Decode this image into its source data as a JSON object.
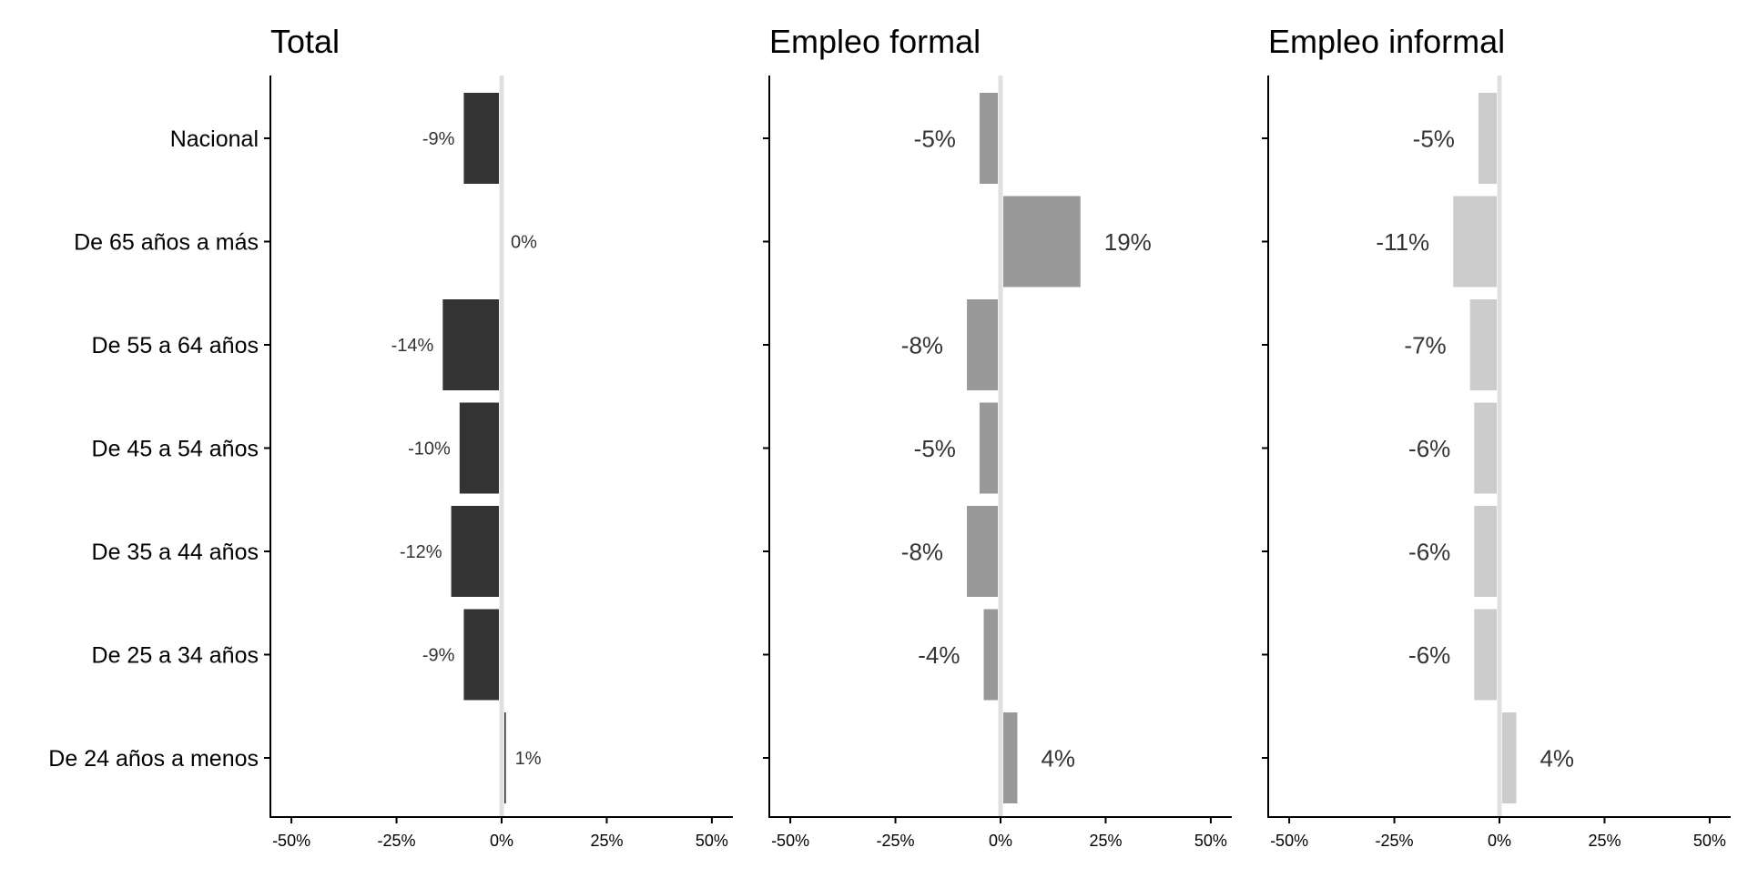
{
  "chart_data": {
    "type": "bar",
    "orientation": "horizontal",
    "categories": [
      "Nacional",
      "De 65 años a más",
      "De 55 a 64 años",
      "De 45 a 54 años",
      "De 35 a 44 años",
      "De 25 a 34 años",
      "De 24 años a menos"
    ],
    "xlim": [
      -0.55,
      0.55
    ],
    "x_ticks": [
      -0.5,
      -0.25,
      0,
      0.25,
      0.5
    ],
    "x_tick_labels": [
      "-50%",
      "-25%",
      "0%",
      "25%",
      "50%"
    ],
    "reference_line": 0,
    "reference_line_color": "#e0e0e0",
    "grid": false,
    "panels": [
      {
        "title": "Total",
        "color": "#333333",
        "values": [
          -0.09,
          0.0,
          -0.14,
          -0.1,
          -0.12,
          -0.09,
          0.01
        ],
        "labels": [
          "-9%",
          "0%",
          "-14%",
          "-10%",
          "-12%",
          "-9%",
          "1%"
        ]
      },
      {
        "title": "Empleo formal",
        "color": "#999999",
        "values": [
          -0.05,
          0.19,
          -0.08,
          -0.05,
          -0.08,
          -0.04,
          0.04
        ],
        "labels": [
          "-5%",
          "19%",
          "-8%",
          "-5%",
          "-8%",
          "-4%",
          "4%"
        ]
      },
      {
        "title": "Empleo informal",
        "color": "#cccccc",
        "values": [
          -0.05,
          -0.11,
          -0.07,
          -0.06,
          -0.06,
          -0.06,
          0.04
        ],
        "labels": [
          "-5%",
          "-11%",
          "-7%",
          "-6%",
          "-6%",
          "-6%",
          "4%"
        ]
      }
    ]
  }
}
